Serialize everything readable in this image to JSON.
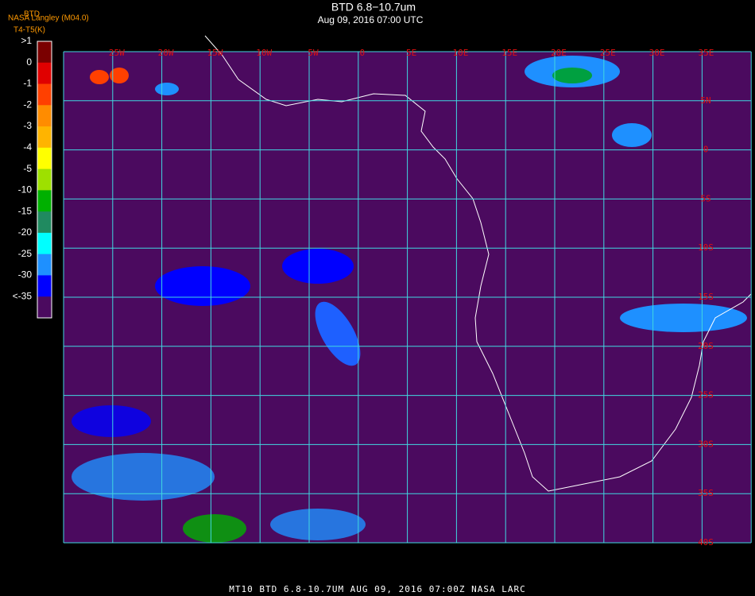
{
  "header": {
    "title": "BTD 6.8−10.7um",
    "subtitle": "Aug 09, 2016 07:00 UTC",
    "source": "NASA Langley (M04.0)",
    "product": "BTD",
    "units": "T4-T5(K)"
  },
  "legend": {
    "labels": [
      ">1",
      "0",
      "-1",
      "-2",
      "-3",
      "-4",
      "-5",
      "-10",
      "-15",
      "-20",
      "-25",
      "-30",
      "<-35"
    ],
    "colors": [
      "#7a0000",
      "#e00000",
      "#ff4000",
      "#ff8c00",
      "#ffb400",
      "#ffff00",
      "#9ee000",
      "#00b000",
      "#208a60",
      "#00ffff",
      "#1e90ff",
      "#0000ff",
      "#4b0a5f"
    ]
  },
  "map": {
    "lon_labels": [
      "25W",
      "20W",
      "15W",
      "10W",
      "5W",
      "0",
      "5E",
      "10E",
      "15E",
      "20E",
      "25E",
      "30E",
      "35E"
    ],
    "lat_labels": [
      "5N",
      "0",
      "5S",
      "10S",
      "15S",
      "20S",
      "25S",
      "30S",
      "35S",
      "40S"
    ]
  },
  "footer": "MT10   BTD 6.8-10.7UM   AUG 09, 2016 07:00Z   NASA LARC"
}
